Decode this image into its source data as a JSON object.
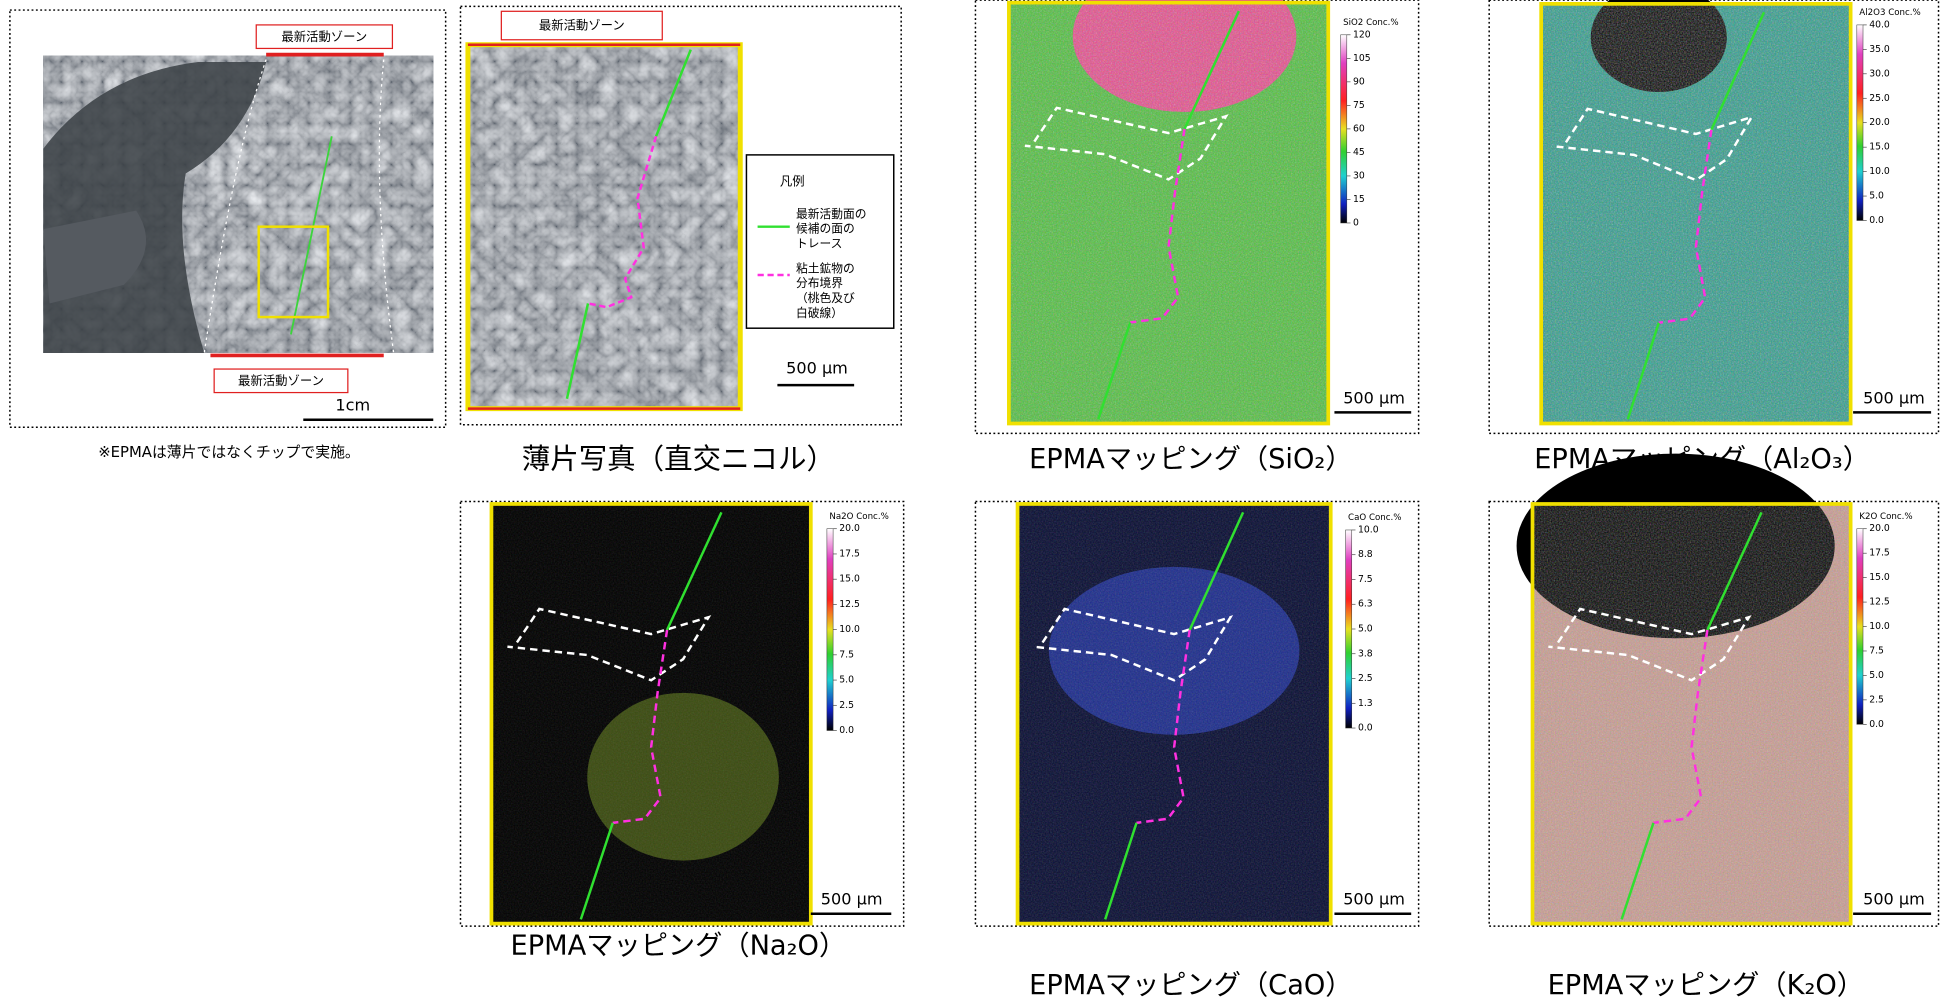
{
  "overview": {
    "zone_labels": [
      "最新活動ゾーン",
      "最新活動ゾーン"
    ],
    "scale": "1cm",
    "note": "※EPMAは薄片ではなくチップで実施。"
  },
  "thin_section": {
    "zone_label": "最新活動ゾーン",
    "scale": "500 μm",
    "caption": "薄片写真（直交ニコル）",
    "legend": {
      "title": "凡例",
      "items": [
        {
          "lines": [
            "最新活動面の",
            "候補の面の",
            "トレース"
          ]
        },
        {
          "lines": [
            "粘土鉱物の",
            "分布境界",
            "（桃色及び",
            "白破線）"
          ]
        }
      ]
    }
  },
  "maps": [
    {
      "caption": "EPMAマッピング（SiO₂）",
      "colorbar_title": "SiO2 Conc.%",
      "colorbar_ticks": [
        "120",
        "105",
        "90",
        "75",
        "60",
        "45",
        "30",
        "15",
        "0"
      ],
      "scale": "500 μm"
    },
    {
      "caption": "EPMAマッピング（Al₂O₃）",
      "colorbar_title": "Al2O3 Conc.%",
      "colorbar_ticks": [
        "40.0",
        "35.0",
        "30.0",
        "25.0",
        "20.0",
        "15.0",
        "10.0",
        "5.0",
        "0.0"
      ],
      "scale": "500 μm"
    },
    {
      "caption": "EPMAマッピング（Na₂O）",
      "colorbar_title": "Na2O Conc.%",
      "colorbar_ticks": [
        "20.0",
        "17.5",
        "15.0",
        "12.5",
        "10.0",
        "7.5",
        "5.0",
        "2.5",
        "0.0"
      ],
      "scale": "500 μm"
    },
    {
      "caption": "EPMAマッピング（CaO）",
      "colorbar_title": "CaO Conc.%",
      "colorbar_ticks": [
        "10.0",
        "8.8",
        "7.5",
        "6.3",
        "5.0",
        "3.8",
        "2.5",
        "1.3",
        "0.0"
      ],
      "scale": "500 μm"
    },
    {
      "caption": "EPMAマッピング（K₂O）",
      "colorbar_title": "K2O Conc.%",
      "colorbar_ticks": [
        "20.0",
        "17.5",
        "15.0",
        "12.5",
        "10.0",
        "7.5",
        "5.0",
        "2.5",
        "0.0"
      ],
      "scale": "500 μm"
    }
  ]
}
